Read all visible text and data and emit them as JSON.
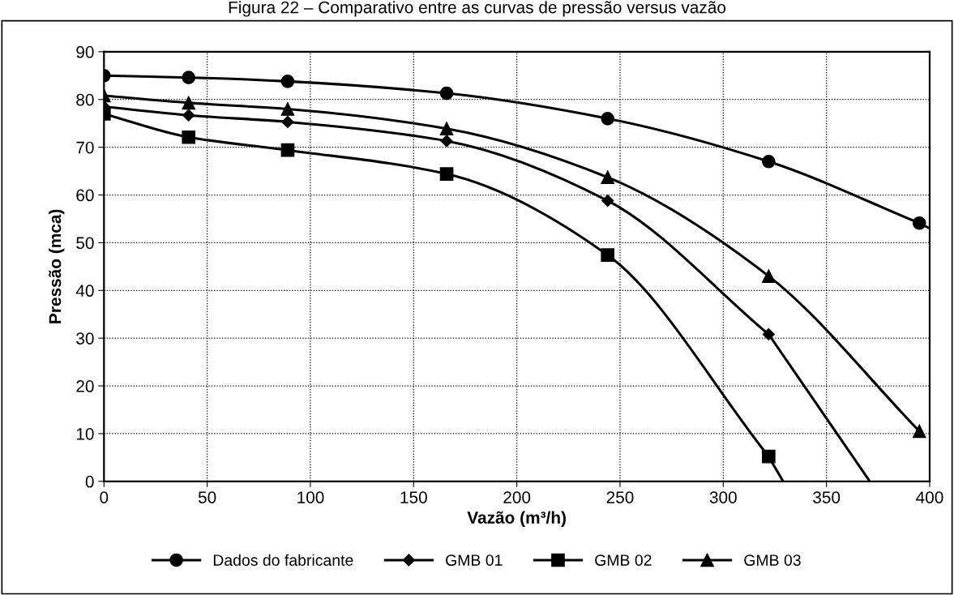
{
  "chart_data": {
    "type": "line",
    "title": "Figura 22 – Comparativo entre as curvas de pressão versus vazão",
    "xlabel": "Vazão (m³/h)",
    "ylabel": "Pressão (mca)",
    "xlim": [
      0,
      400
    ],
    "xticks": [
      0,
      50,
      100,
      150,
      200,
      250,
      300,
      350,
      400
    ],
    "ylim": [
      0,
      90
    ],
    "yticks": [
      0,
      10,
      20,
      30,
      40,
      50,
      60,
      70,
      80,
      90
    ],
    "grid": true,
    "legend": "bottom",
    "line_style": "solid",
    "series": [
      {
        "name": "Dados do fabricante",
        "color": "#000000",
        "marker": "circle",
        "x": [
          0,
          41,
          89,
          166,
          244,
          322,
          395
        ],
        "values": [
          85,
          84.6,
          83.8,
          81.3,
          76,
          67,
          54.1
        ]
      },
      {
        "name": "GMB 01",
        "color": "#000000",
        "marker": "diamond",
        "x": [
          0,
          41,
          89,
          166,
          244,
          322
        ],
        "values": [
          78.5,
          76.7,
          75.3,
          71.3,
          58.8,
          30.8
        ]
      },
      {
        "name": "GMB 02",
        "color": "#000000",
        "marker": "square",
        "x": [
          0,
          41,
          89,
          166,
          244,
          322
        ],
        "values": [
          77,
          72.1,
          69.4,
          64.4,
          47.4,
          5.2
        ]
      },
      {
        "name": "GMB 03",
        "color": "#000000",
        "marker": "triangle",
        "x": [
          0,
          41,
          89,
          166,
          244,
          322,
          395
        ],
        "values": [
          80.8,
          79.3,
          78,
          73.9,
          63.7,
          43,
          10.5
        ]
      },
      {
        "color": "#000000",
        "marker": "none",
        "x": [
          395,
          400
        ],
        "values": [
          54.1,
          53
        ]
      },
      {
        "color": "#000000",
        "marker": "none",
        "x": [
          322,
          371
        ],
        "values": [
          30.8,
          0
        ]
      },
      {
        "color": "#000000",
        "marker": "none",
        "x": [
          322,
          329
        ],
        "values": [
          5.2,
          0
        ]
      }
    ]
  }
}
